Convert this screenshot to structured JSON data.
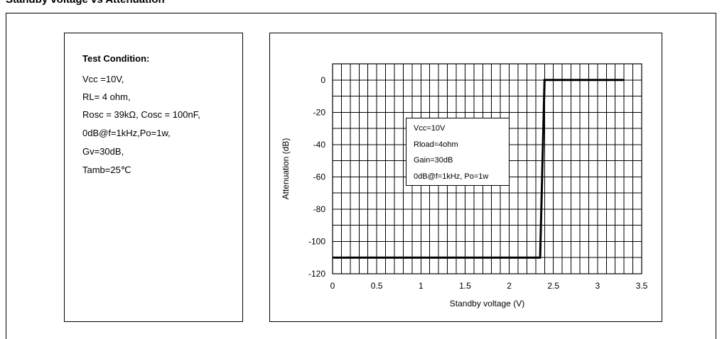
{
  "figure": {
    "title": "Standby voltage vs Attenuation"
  },
  "test_condition": {
    "title": "Test Condition:",
    "lines": [
      "Vcc =10V,",
      "RL= 4 ohm,",
      "Rosc = 39kΩ, Cosc = 100nF,",
      "0dB@f=1kHz,Po=1w,",
      "Gv=30dB,",
      "Tamb=25℃"
    ]
  },
  "legend": {
    "lines": [
      "Vcc=10V",
      "Rload=4ohm",
      "Gain=30dB",
      "0dB@f=1kHz, Po=1w"
    ]
  },
  "colors": {
    "line": "#000000",
    "grid": "#000000"
  },
  "chart_data": {
    "type": "line",
    "xlabel": "Standby voltage (V)",
    "ylabel": "Attenuation (dB)",
    "xlim": [
      0,
      3.5
    ],
    "ylim": [
      -120,
      10
    ],
    "x_ticks": [
      0,
      0.5,
      1,
      1.5,
      2,
      2.5,
      3,
      3.5
    ],
    "x_tick_labels": [
      "0",
      "0.5",
      "1",
      "1.5",
      "2",
      "2.5",
      "3",
      "3.5"
    ],
    "y_ticks": [
      0,
      -20,
      -40,
      -60,
      -80,
      -100,
      -120
    ],
    "y_tick_labels": [
      "0",
      "-20",
      "-40",
      "-60",
      "-80",
      "-100",
      "-120"
    ],
    "grid": true,
    "grid_x_step": 0.1,
    "grid_y_step": 10,
    "series": [
      {
        "x": [
          0,
          2.35,
          2.4,
          3.3
        ],
        "y": [
          -110,
          -110,
          0,
          0
        ]
      }
    ]
  }
}
